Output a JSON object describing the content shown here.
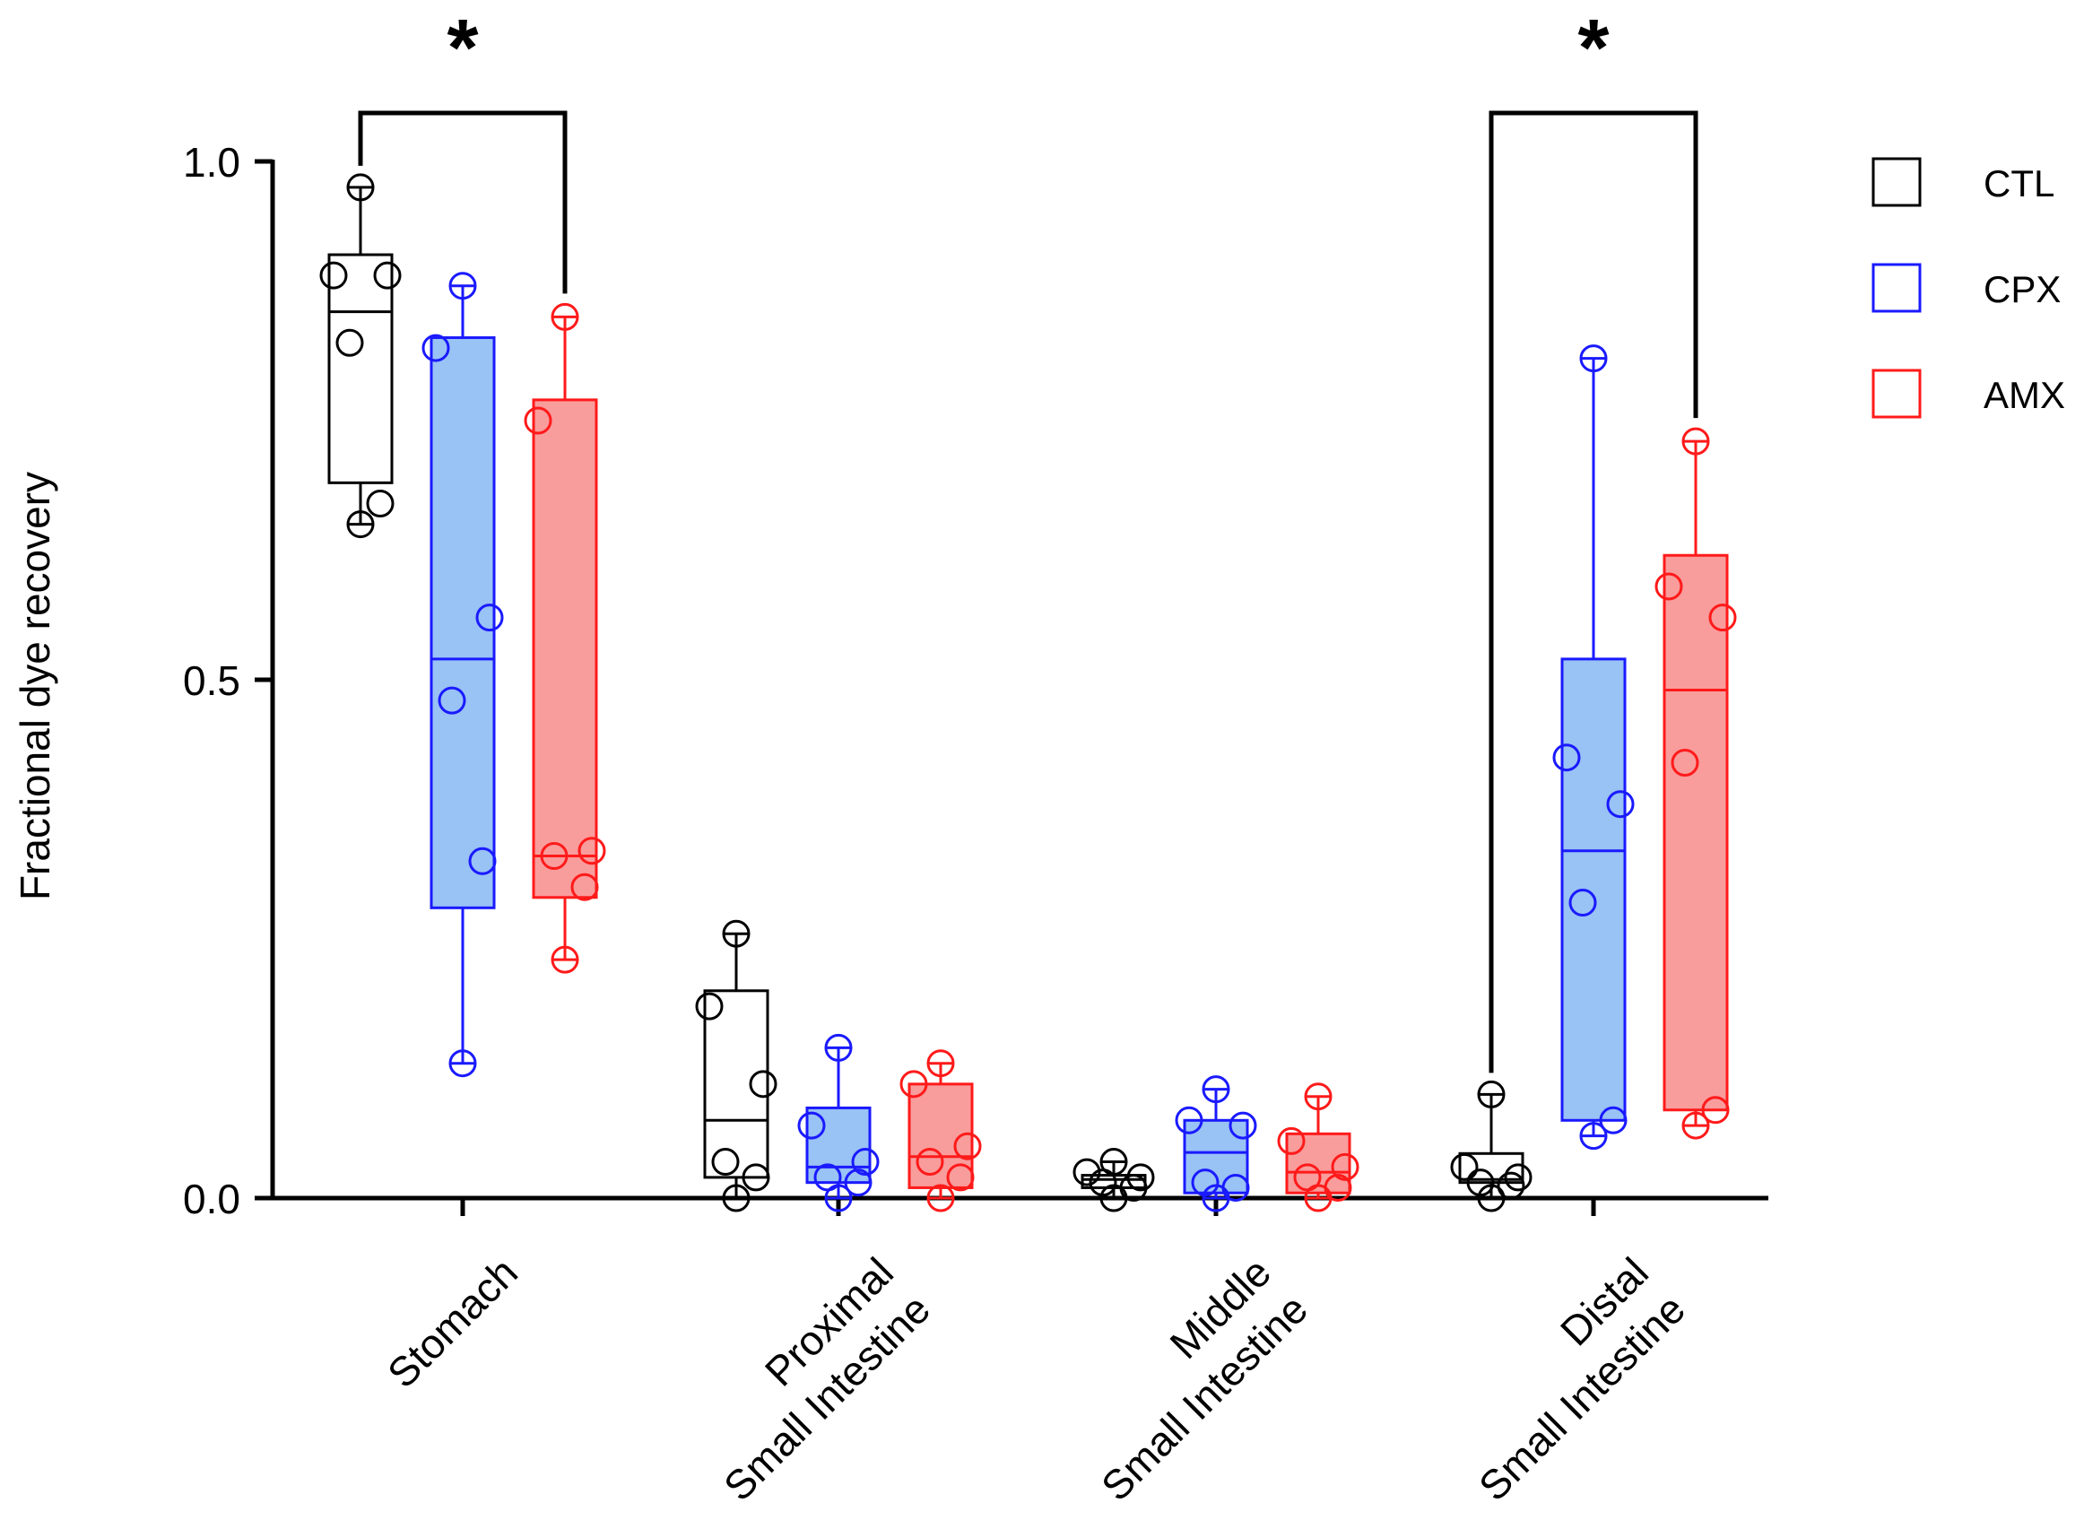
{
  "chart_data": {
    "type": "box",
    "ylabel": "Fractional dye recovery",
    "ylim": [
      0,
      1.0
    ],
    "yticks": [
      "0.0",
      "0.5",
      "1.0"
    ],
    "categories": [
      {
        "lines": [
          "Stomach"
        ]
      },
      {
        "lines": [
          "Proximal",
          "Small Intestine"
        ]
      },
      {
        "lines": [
          "Middle",
          "Small Intestine"
        ]
      },
      {
        "lines": [
          "Distal",
          "Small Intestine"
        ]
      }
    ],
    "series": [
      {
        "name": "CTL",
        "stroke": "#000000",
        "fill": "none"
      },
      {
        "name": "CPX",
        "stroke": "#1a1aff",
        "fill": "#99c2f5"
      },
      {
        "name": "AMX",
        "stroke": "#ff1a1a",
        "fill": "#f99c9c"
      }
    ],
    "boxes": [
      {
        "category": 0,
        "series": 0,
        "min": 0.65,
        "q1": 0.69,
        "median": 0.855,
        "q3": 0.91,
        "max": 0.975,
        "points": [
          0.65,
          0.67,
          0.825,
          0.89,
          0.89,
          0.975
        ]
      },
      {
        "category": 0,
        "series": 1,
        "min": 0.13,
        "q1": 0.28,
        "median": 0.52,
        "q3": 0.83,
        "max": 0.88,
        "points": [
          0.13,
          0.325,
          0.48,
          0.56,
          0.82,
          0.88
        ]
      },
      {
        "category": 0,
        "series": 2,
        "min": 0.23,
        "q1": 0.29,
        "median": 0.33,
        "q3": 0.77,
        "max": 0.85,
        "points": [
          0.23,
          0.3,
          0.33,
          0.335,
          0.75,
          0.85
        ]
      },
      {
        "category": 1,
        "series": 0,
        "min": 0.0,
        "q1": 0.02,
        "median": 0.075,
        "q3": 0.2,
        "max": 0.255,
        "points": [
          0.0,
          0.02,
          0.035,
          0.11,
          0.185,
          0.255
        ]
      },
      {
        "category": 1,
        "series": 1,
        "min": 0.0,
        "q1": 0.015,
        "median": 0.03,
        "q3": 0.087,
        "max": 0.145,
        "points": [
          0.0,
          0.015,
          0.02,
          0.035,
          0.07,
          0.145
        ]
      },
      {
        "category": 1,
        "series": 2,
        "min": 0.0,
        "q1": 0.01,
        "median": 0.04,
        "q3": 0.11,
        "max": 0.13,
        "points": [
          0.0,
          0.02,
          0.035,
          0.05,
          0.11,
          0.13
        ]
      },
      {
        "category": 2,
        "series": 0,
        "min": 0.0,
        "q1": 0.01,
        "median": 0.018,
        "q3": 0.022,
        "max": 0.035,
        "points": [
          0.0,
          0.01,
          0.015,
          0.02,
          0.025,
          0.035
        ]
      },
      {
        "category": 2,
        "series": 1,
        "min": 0.0,
        "q1": 0.005,
        "median": 0.044,
        "q3": 0.075,
        "max": 0.105,
        "points": [
          0.0,
          0.01,
          0.015,
          0.07,
          0.075,
          0.105
        ]
      },
      {
        "category": 2,
        "series": 2,
        "min": 0.0,
        "q1": 0.005,
        "median": 0.025,
        "q3": 0.062,
        "max": 0.098,
        "points": [
          0.0,
          0.01,
          0.02,
          0.03,
          0.055,
          0.098
        ]
      },
      {
        "category": 3,
        "series": 0,
        "min": 0.0,
        "q1": 0.015,
        "median": 0.018,
        "q3": 0.043,
        "max": 0.1,
        "points": [
          0.0,
          0.012,
          0.015,
          0.02,
          0.03,
          0.1
        ]
      },
      {
        "category": 3,
        "series": 1,
        "min": 0.06,
        "q1": 0.075,
        "median": 0.335,
        "q3": 0.52,
        "max": 0.81,
        "points": [
          0.06,
          0.075,
          0.285,
          0.38,
          0.425,
          0.81
        ]
      },
      {
        "category": 3,
        "series": 2,
        "min": 0.07,
        "q1": 0.085,
        "median": 0.49,
        "q3": 0.62,
        "max": 0.73,
        "points": [
          0.07,
          0.085,
          0.42,
          0.56,
          0.59,
          0.73
        ]
      }
    ],
    "significance": [
      {
        "category": 0,
        "from_series": 0,
        "to_series": 2,
        "label": "*"
      },
      {
        "category": 3,
        "from_series": 0,
        "to_series": 2,
        "label": "*"
      }
    ]
  }
}
